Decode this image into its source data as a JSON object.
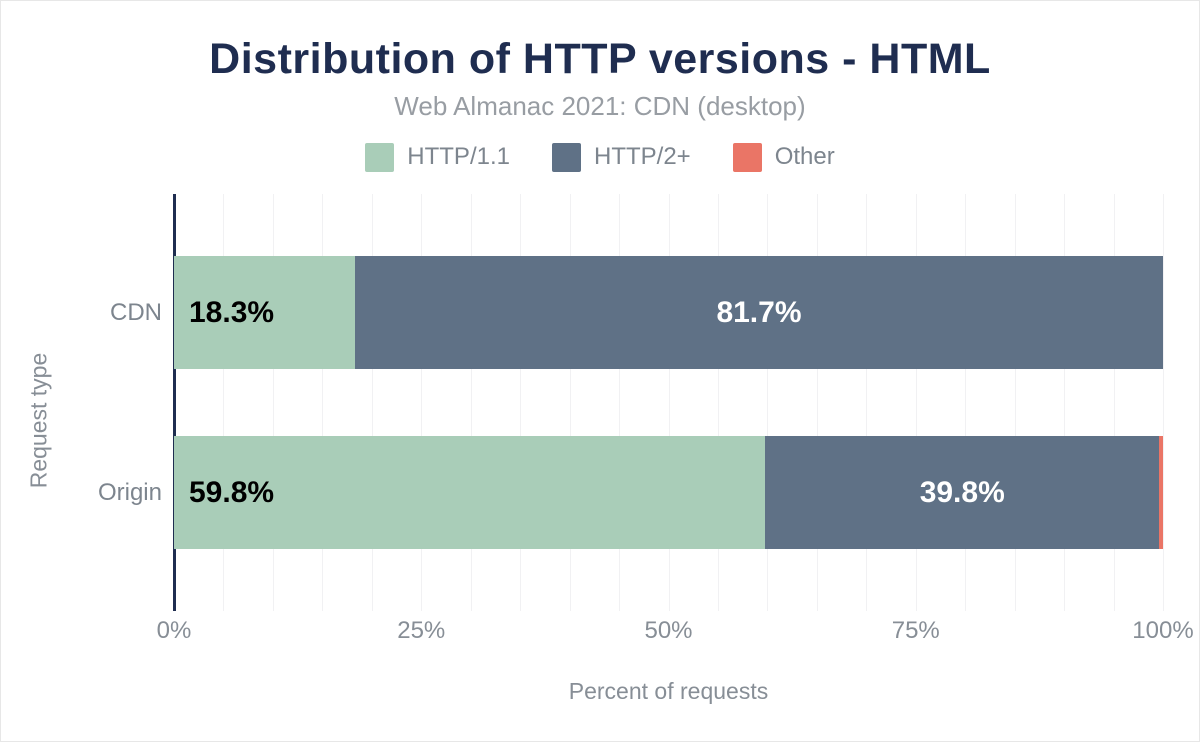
{
  "header": {
    "title": "Distribution of HTTP versions - HTML",
    "subtitle": "Web Almanac 2021: CDN (desktop)"
  },
  "legend": {
    "items": [
      {
        "label": "HTTP/1.1",
        "color": "#a9cdb8"
      },
      {
        "label": "HTTP/2+",
        "color": "#5f7186"
      },
      {
        "label": "Other",
        "color": "#ea7566"
      }
    ]
  },
  "chart_data": {
    "type": "bar",
    "orientation": "horizontal",
    "stacked": true,
    "title": "Distribution of HTTP versions - HTML",
    "subtitle": "Web Almanac 2021: CDN (desktop)",
    "categories": [
      "CDN",
      "Origin"
    ],
    "series": [
      {
        "name": "HTTP/1.1",
        "color": "#a9cdb8",
        "values": [
          18.3,
          59.8
        ],
        "labels": [
          "18.3%",
          "59.8%"
        ],
        "label_color": "#000000",
        "label_align": "left"
      },
      {
        "name": "HTTP/2+",
        "color": "#5f7186",
        "values": [
          81.7,
          39.8
        ],
        "labels": [
          "81.7%",
          "39.8%"
        ],
        "label_color": "#ffffff",
        "label_align": "center"
      },
      {
        "name": "Other",
        "color": "#ea7566",
        "values": [
          0.0,
          0.4
        ],
        "labels": [
          "",
          ""
        ],
        "label_color": "#ffffff",
        "label_align": "center"
      }
    ],
    "xlabel": "Percent of requests",
    "ylabel": "Request type",
    "xlim": [
      0,
      100
    ],
    "x_ticks": [
      "0%",
      "25%",
      "50%",
      "75%",
      "100%"
    ],
    "x_tick_values": [
      0,
      25,
      50,
      75,
      100
    ],
    "grid_interval_percent": 5,
    "grid": true,
    "legend_position": "top"
  },
  "colors": {
    "title": "#1f2d50",
    "subtitle": "#989da3",
    "axis_text": "#878e96",
    "axis_line": "#1f2d50",
    "gridline": "#f1f1f3",
    "background": "#ffffff"
  }
}
